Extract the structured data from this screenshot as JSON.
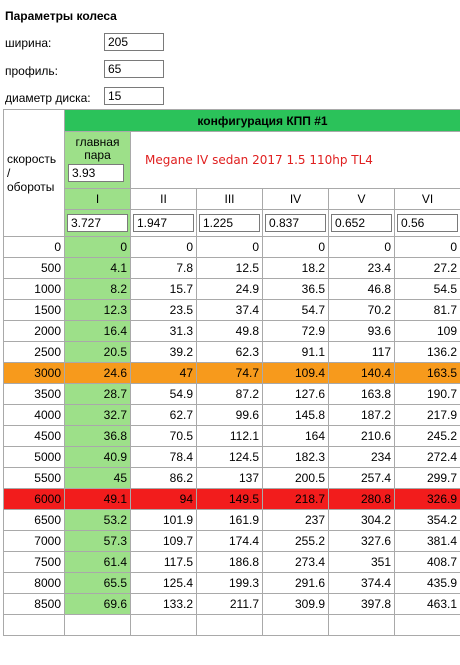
{
  "section_title": "Параметры колеса",
  "wheel": {
    "width_label": "ширина:",
    "width_value": "205",
    "profile_label": "профиль:",
    "profile_value": "65",
    "rim_label": "диаметр диска:",
    "rim_value": "15"
  },
  "table": {
    "corner_label": "скорость / обороты",
    "config_title": "конфигурация КПП #1",
    "main_pair_label": "главная пара",
    "main_pair_value": "3.93",
    "car_note": "Megane IV sedan 2017 1.5 110hp TL4",
    "gears": [
      "I",
      "II",
      "III",
      "IV",
      "V",
      "VI"
    ],
    "ratios": [
      "3.727",
      "1.947",
      "1.225",
      "0.837",
      "0.652",
      "0.56"
    ],
    "rows": [
      {
        "rpm": "0",
        "speeds": [
          "0",
          "0",
          "0",
          "0",
          "0",
          "0"
        ],
        "highlight": ""
      },
      {
        "rpm": "500",
        "speeds": [
          "4.1",
          "7.8",
          "12.5",
          "18.2",
          "23.4",
          "27.2"
        ],
        "highlight": ""
      },
      {
        "rpm": "1000",
        "speeds": [
          "8.2",
          "15.7",
          "24.9",
          "36.5",
          "46.8",
          "54.5"
        ],
        "highlight": ""
      },
      {
        "rpm": "1500",
        "speeds": [
          "12.3",
          "23.5",
          "37.4",
          "54.7",
          "70.2",
          "81.7"
        ],
        "highlight": ""
      },
      {
        "rpm": "2000",
        "speeds": [
          "16.4",
          "31.3",
          "49.8",
          "72.9",
          "93.6",
          "109"
        ],
        "highlight": ""
      },
      {
        "rpm": "2500",
        "speeds": [
          "20.5",
          "39.2",
          "62.3",
          "91.1",
          "117",
          "136.2"
        ],
        "highlight": ""
      },
      {
        "rpm": "3000",
        "speeds": [
          "24.6",
          "47",
          "74.7",
          "109.4",
          "140.4",
          "163.5"
        ],
        "highlight": "orange"
      },
      {
        "rpm": "3500",
        "speeds": [
          "28.7",
          "54.9",
          "87.2",
          "127.6",
          "163.8",
          "190.7"
        ],
        "highlight": ""
      },
      {
        "rpm": "4000",
        "speeds": [
          "32.7",
          "62.7",
          "99.6",
          "145.8",
          "187.2",
          "217.9"
        ],
        "highlight": ""
      },
      {
        "rpm": "4500",
        "speeds": [
          "36.8",
          "70.5",
          "112.1",
          "164",
          "210.6",
          "245.2"
        ],
        "highlight": ""
      },
      {
        "rpm": "5000",
        "speeds": [
          "40.9",
          "78.4",
          "124.5",
          "182.3",
          "234",
          "272.4"
        ],
        "highlight": ""
      },
      {
        "rpm": "5500",
        "speeds": [
          "45",
          "86.2",
          "137",
          "200.5",
          "257.4",
          "299.7"
        ],
        "highlight": ""
      },
      {
        "rpm": "6000",
        "speeds": [
          "49.1",
          "94",
          "149.5",
          "218.7",
          "280.8",
          "326.9"
        ],
        "highlight": "red"
      },
      {
        "rpm": "6500",
        "speeds": [
          "53.2",
          "101.9",
          "161.9",
          "237",
          "304.2",
          "354.2"
        ],
        "highlight": ""
      },
      {
        "rpm": "7000",
        "speeds": [
          "57.3",
          "109.7",
          "174.4",
          "255.2",
          "327.6",
          "381.4"
        ],
        "highlight": ""
      },
      {
        "rpm": "7500",
        "speeds": [
          "61.4",
          "117.5",
          "186.8",
          "273.4",
          "351",
          "408.7"
        ],
        "highlight": ""
      },
      {
        "rpm": "8000",
        "speeds": [
          "65.5",
          "125.4",
          "199.3",
          "291.6",
          "374.4",
          "435.9"
        ],
        "highlight": ""
      },
      {
        "rpm": "8500",
        "speeds": [
          "69.6",
          "133.2",
          "211.7",
          "309.9",
          "397.8",
          "463.1"
        ],
        "highlight": ""
      }
    ]
  },
  "colors": {
    "config_header": "#2bc25a",
    "first_gear": "#9de089",
    "highlight_orange": "#f79a1c",
    "highlight_red": "#f21c1c",
    "car_note_text": "#e02020"
  }
}
